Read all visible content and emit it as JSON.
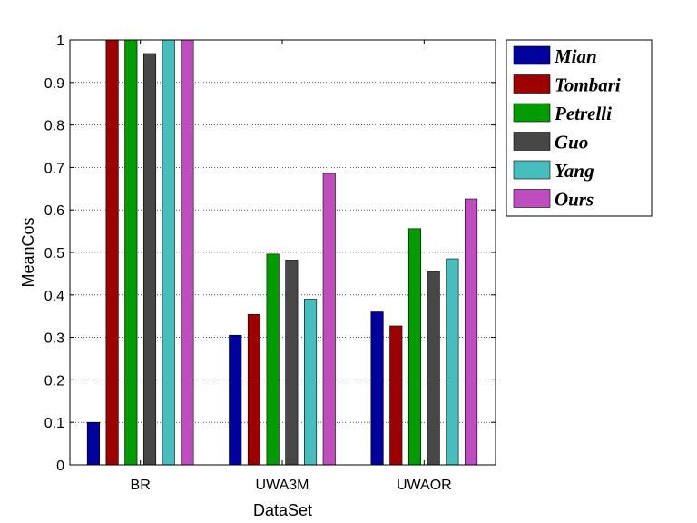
{
  "chart_data": {
    "type": "bar",
    "xlabel": "DataSet",
    "ylabel": "MeanCos",
    "categories": [
      "BR",
      "UWA3M",
      "UWAOR"
    ],
    "ylim": [
      0,
      1
    ],
    "yticks": [
      "0",
      "0.1",
      "0.2",
      "0.3",
      "0.4",
      "0.5",
      "0.6",
      "0.7",
      "0.8",
      "0.9",
      "1"
    ],
    "grid": "horizontal dotted",
    "legend_position": "outside-right-top",
    "series": [
      {
        "name": "Mian",
        "color": "#00009c",
        "values": [
          0.1,
          0.305,
          0.36
        ]
      },
      {
        "name": "Tombari",
        "color": "#9c0000",
        "values": [
          1.0,
          0.354,
          0.327
        ]
      },
      {
        "name": "Petrelli",
        "color": "#009c00",
        "values": [
          1.0,
          0.496,
          0.556
        ]
      },
      {
        "name": "Guo",
        "color": "#474747",
        "values": [
          0.968,
          0.482,
          0.455
        ]
      },
      {
        "name": "Yang",
        "color": "#46bebe",
        "values": [
          1.0,
          0.39,
          0.485
        ]
      },
      {
        "name": "Ours",
        "color": "#be4ebe",
        "values": [
          1.0,
          0.686,
          0.626
        ]
      }
    ]
  }
}
